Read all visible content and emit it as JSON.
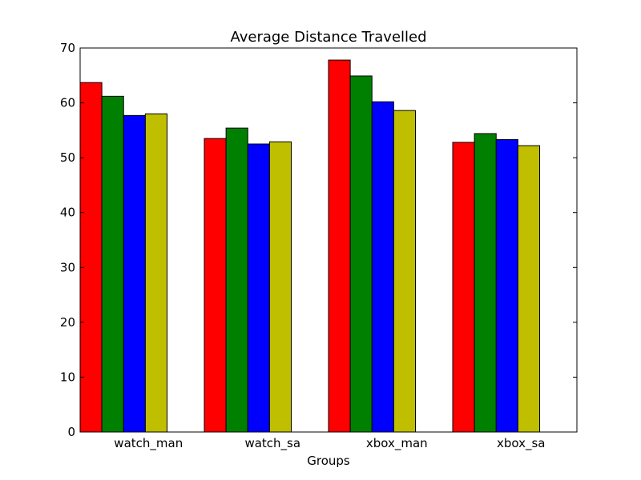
{
  "chart_data": {
    "type": "bar",
    "title": "Average Distance Travelled",
    "xlabel": "Groups",
    "ylabel": "",
    "categories": [
      "watch_man",
      "watch_sa",
      "xbox_man",
      "xbox_sa"
    ],
    "ylim": [
      0,
      70
    ],
    "yticks": [
      0,
      10,
      20,
      30,
      40,
      50,
      60,
      70
    ],
    "grid": false,
    "series": [
      {
        "color": "#ff0000",
        "values": [
          63.7,
          53.5,
          67.8,
          52.8
        ]
      },
      {
        "color": "#008000",
        "values": [
          61.2,
          55.4,
          64.9,
          54.4
        ]
      },
      {
        "color": "#0000ff",
        "values": [
          57.7,
          52.5,
          60.2,
          53.3
        ]
      },
      {
        "color": "#bfbf00",
        "values": [
          58.0,
          52.9,
          58.6,
          52.2
        ]
      }
    ]
  }
}
